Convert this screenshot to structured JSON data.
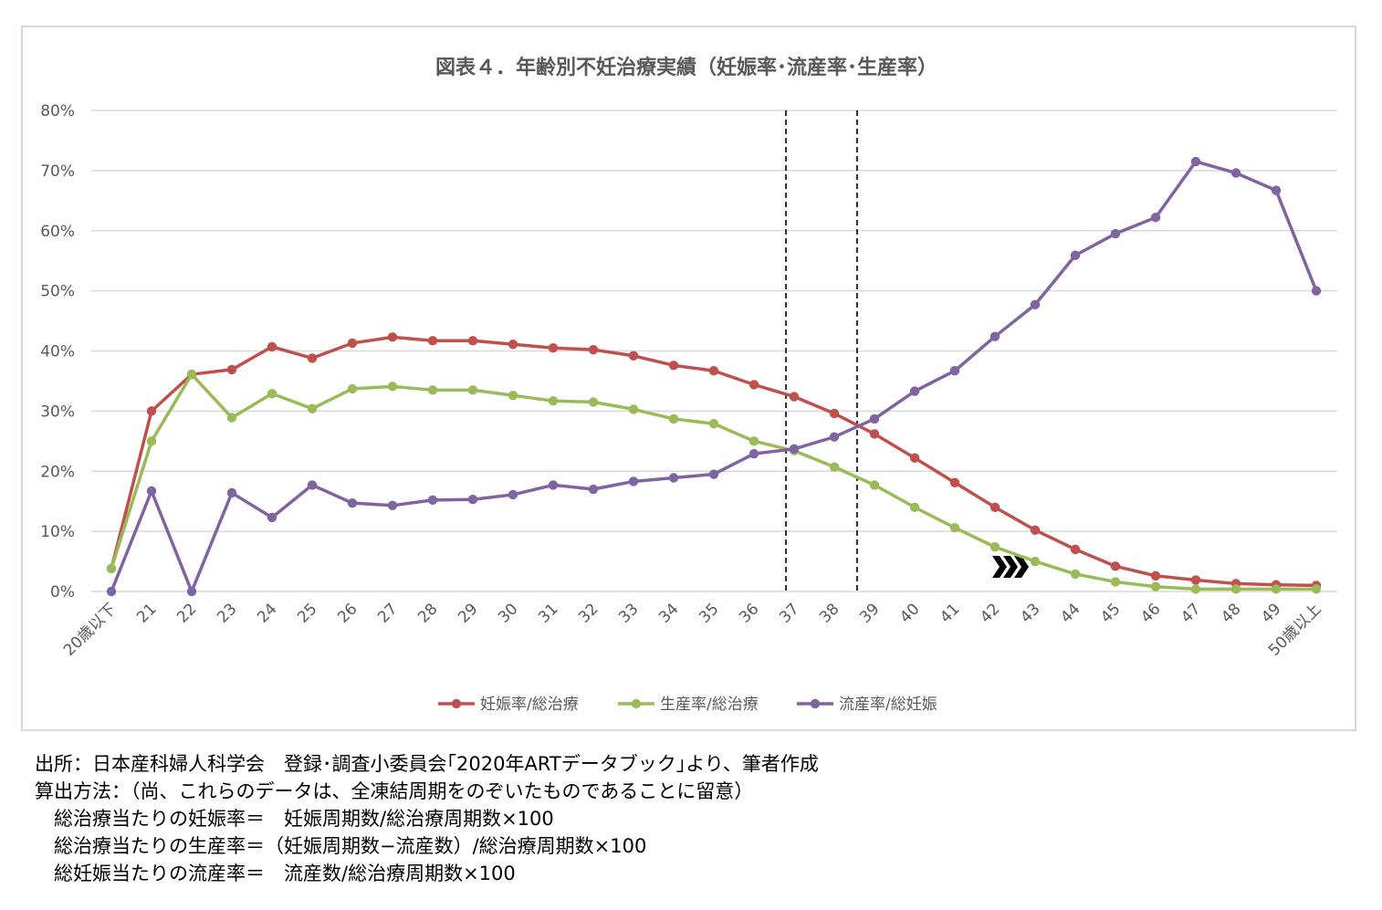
{
  "chart_data": {
    "type": "line",
    "title": "図表４．年齢別不妊治療実績（妊娠率･流産率･生産率）",
    "categories": [
      "20歳以下",
      "21",
      "22",
      "23",
      "24",
      "25",
      "26",
      "27",
      "28",
      "29",
      "30",
      "31",
      "32",
      "33",
      "34",
      "35",
      "36",
      "37",
      "38",
      "39",
      "40",
      "41",
      "42",
      "43",
      "44",
      "45",
      "46",
      "47",
      "48",
      "49",
      "50歳以上"
    ],
    "y_ticks": [
      "0%",
      "10%",
      "20%",
      "30%",
      "40%",
      "50%",
      "60%",
      "70%",
      "80%"
    ],
    "ylim": [
      0,
      80
    ],
    "grid": true,
    "legend_position": "bottom",
    "series": [
      {
        "name": "妊娠率/総治療",
        "color": "#c0504d",
        "values": [
          3.8,
          30.0,
          36.1,
          36.9,
          40.7,
          38.8,
          41.3,
          42.3,
          41.7,
          41.7,
          41.1,
          40.5,
          40.2,
          39.2,
          37.6,
          36.7,
          34.4,
          32.4,
          29.6,
          26.2,
          22.2,
          18.1,
          14.0,
          10.2,
          7.0,
          4.2,
          2.6,
          1.9,
          1.3,
          1.1,
          1.0
        ]
      },
      {
        "name": "生産率/総治療",
        "color": "#9bbb59",
        "values": [
          3.8,
          25.0,
          36.1,
          28.9,
          32.9,
          30.4,
          33.7,
          34.1,
          33.5,
          33.5,
          32.6,
          31.7,
          31.5,
          30.3,
          28.7,
          27.9,
          25.0,
          23.4,
          20.7,
          17.7,
          14.0,
          10.6,
          7.4,
          5.0,
          2.9,
          1.6,
          0.8,
          0.4,
          0.4,
          0.4,
          0.4
        ]
      },
      {
        "name": "流産率/総妊娠",
        "color": "#8064a2",
        "values": [
          0.0,
          16.7,
          0.0,
          16.4,
          12.3,
          17.7,
          14.7,
          14.3,
          15.2,
          15.3,
          16.1,
          17.7,
          17.0,
          18.3,
          18.9,
          19.5,
          22.9,
          23.7,
          25.7,
          28.7,
          33.3,
          36.7,
          42.4,
          47.7,
          55.9,
          59.5,
          62.2,
          71.5,
          69.6,
          66.7,
          50.0
        ]
      }
    ],
    "annotations": [
      "dashed vertical lines between ages 37 and 38-39",
      "chevron marker near age 42-43"
    ]
  },
  "notes": {
    "line1": "出所：日本産科婦人科学会　登録･調査小委員会｢2020年ARTデータブック｣より、筆者作成",
    "line2": "算出方法：（尚、これらのデータは、全凍結周期をのぞいたものであることに留意）",
    "line3": "　総治療当たりの妊娠率＝　妊娠周期数/総治療周期数×100",
    "line4": "　総治療当たりの生産率＝（妊娠周期数−流産数）/総治療周期数×100",
    "line5": "　総妊娠当たりの流産率＝　流産数/総治療周期数×100"
  }
}
